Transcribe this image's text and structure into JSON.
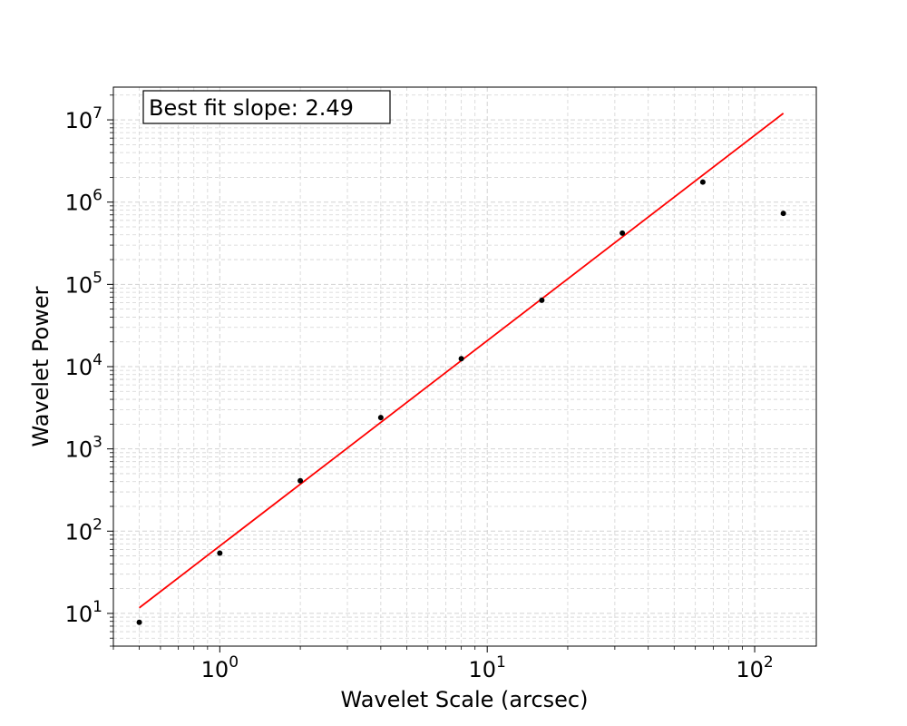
{
  "chart_data": {
    "type": "scatter",
    "title": "",
    "xlabel": "Wavelet Scale (arcsec)",
    "ylabel": "Wavelet Power",
    "xscale": "log",
    "yscale": "log",
    "xlim": [
      0.4,
      170
    ],
    "ylim": [
      4,
      25000000
    ],
    "grid": true,
    "x_ticks": [
      {
        "base": "10",
        "exp": "0",
        "value": 1
      },
      {
        "base": "10",
        "exp": "1",
        "value": 10
      },
      {
        "base": "10",
        "exp": "2",
        "value": 100
      }
    ],
    "y_ticks": [
      {
        "base": "10",
        "exp": "1",
        "value": 10
      },
      {
        "base": "10",
        "exp": "2",
        "value": 100
      },
      {
        "base": "10",
        "exp": "3",
        "value": 1000
      },
      {
        "base": "10",
        "exp": "4",
        "value": 10000
      },
      {
        "base": "10",
        "exp": "5",
        "value": 100000
      },
      {
        "base": "10",
        "exp": "6",
        "value": 1000000
      },
      {
        "base": "10",
        "exp": "7",
        "value": 10000000
      }
    ],
    "series": [
      {
        "type": "scatter",
        "color": "#000000",
        "x": [
          0.5,
          1,
          2,
          4,
          8,
          16,
          32,
          64,
          128
        ],
        "y": [
          7.8,
          54,
          410,
          2400,
          12500,
          64000,
          420000,
          1750000,
          730000
        ]
      },
      {
        "type": "line",
        "color": "#ff0000",
        "x": [
          0.5,
          128
        ],
        "y": [
          11.7,
          12000000
        ]
      }
    ],
    "annotation": {
      "text": "Best fit slope: 2.49",
      "position": "top-left"
    }
  }
}
